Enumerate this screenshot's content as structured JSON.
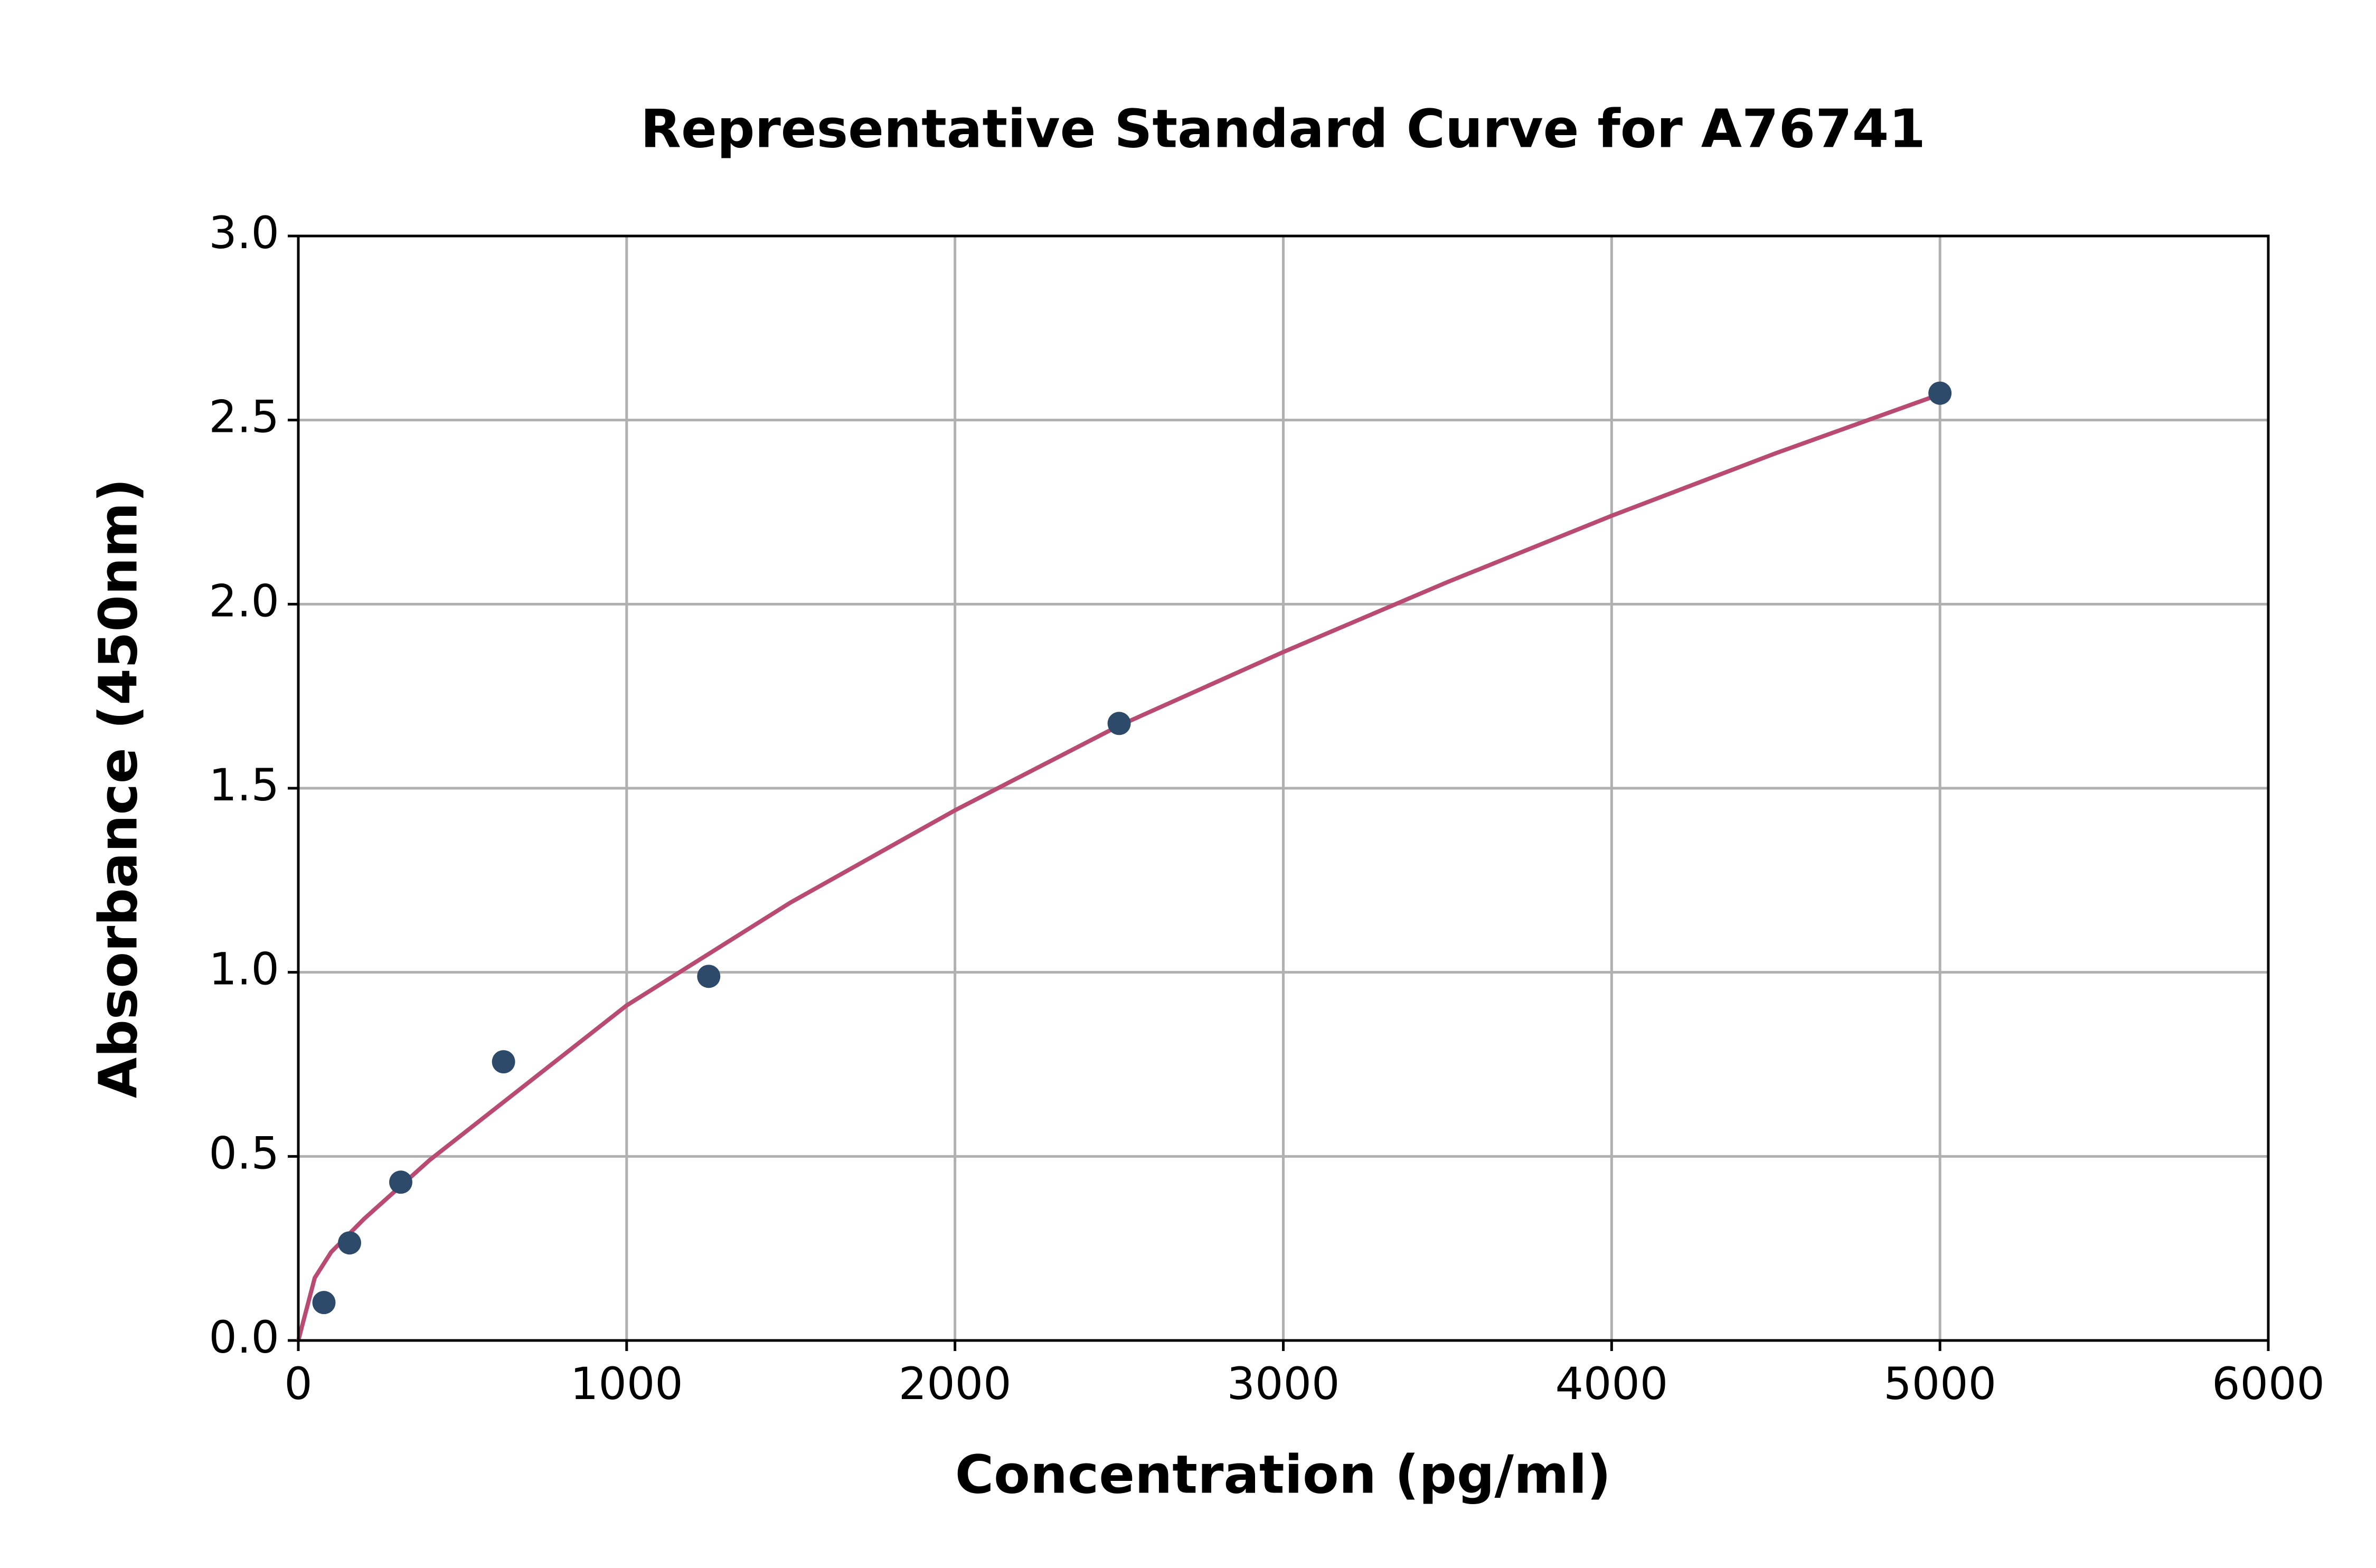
{
  "chart_data": {
    "type": "scatter",
    "title": "Representative Standard Curve for A76741",
    "x_label": "Concentration (pg/ml)",
    "y_label": "Absorbance (450nm)",
    "xlim": [
      0,
      6000
    ],
    "ylim": [
      0,
      3.0
    ],
    "xticks": [
      0,
      1000,
      2000,
      3000,
      4000,
      5000,
      6000
    ],
    "yticks": [
      {
        "value": 0,
        "label": "0.0"
      },
      0.5,
      {
        "value": 1,
        "label": "1.0"
      },
      1.5,
      {
        "value": 2,
        "label": "2.0"
      },
      2.5,
      {
        "value": 3,
        "label": "3.0"
      }
    ],
    "grid": true,
    "series": [
      {
        "mode": "line",
        "color": "#b94a72",
        "x": [
          0,
          50,
          100,
          200,
          400,
          700,
          1000,
          1500,
          2000,
          2500,
          3000,
          3500,
          4000,
          4500,
          5000
        ],
        "values": [
          0,
          0.17,
          0.24,
          0.33,
          0.49,
          0.7,
          0.91,
          1.19,
          1.44,
          1.67,
          1.87,
          2.06,
          2.24,
          2.41,
          2.57
        ]
      },
      {
        "mode": "markers",
        "color": "#2e4a6b",
        "x": [
          78,
          156,
          312,
          625,
          1250,
          2500,
          5000
        ],
        "values": [
          0.103,
          0.265,
          0.43,
          0.757,
          0.989,
          1.676,
          2.573
        ]
      }
    ]
  }
}
